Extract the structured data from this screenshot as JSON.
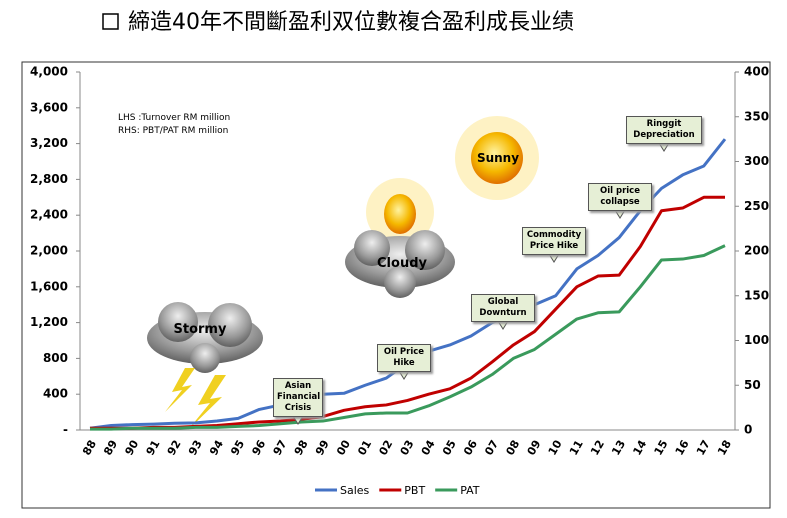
{
  "chart_data": {
    "type": "line",
    "title": "締造40年不間斷盈利双位數複合盈利成長业绩",
    "annotations": [
      "LHS :Turnover RM million",
      "RHS: PBT/PAT RM million",
      "Stormy",
      "Cloudy",
      "Sunny",
      "Asian Financial Crisis",
      "Oil Price Hike",
      "Global Downturn",
      "Commodity Price Hike",
      "Oil price collapse",
      "Ringgit Depreciation"
    ],
    "categories": [
      "88",
      "89",
      "90",
      "91",
      "92",
      "93",
      "94",
      "95",
      "96",
      "97",
      "98",
      "99",
      "00",
      "01",
      "02",
      "03",
      "04",
      "05",
      "06",
      "07",
      "08",
      "09",
      "10",
      "11",
      "12",
      "13",
      "14",
      "15",
      "16",
      "17",
      "18"
    ],
    "series": [
      {
        "name": "Sales",
        "color": "#4472c4",
        "values": [
          20,
          50,
          60,
          65,
          75,
          80,
          100,
          130,
          230,
          280,
          330,
          400,
          410,
          500,
          580,
          750,
          880,
          950,
          1050,
          1200,
          1300,
          1400,
          1500,
          1800,
          1950,
          2150,
          2450,
          2700,
          2850,
          2950,
          3250
        ]
      },
      {
        "name": "PBT",
        "color": "#c00000",
        "axis": "y2",
        "values": [
          2,
          2,
          2,
          3,
          3,
          4,
          5,
          7,
          9,
          10,
          12,
          15,
          22,
          26,
          28,
          33,
          40,
          46,
          58,
          76,
          95,
          110,
          135,
          160,
          172,
          173,
          205,
          245,
          248,
          260,
          260
        ]
      },
      {
        "name": "PAT",
        "color": "#3a9a5c",
        "axis": "y2",
        "values": [
          1,
          1,
          2,
          2,
          2,
          3,
          3,
          4,
          5,
          7,
          9,
          10,
          14,
          18,
          19,
          19,
          27,
          37,
          48,
          62,
          80,
          90,
          107,
          124,
          131,
          132,
          160,
          190,
          191,
          195,
          206
        ]
      }
    ],
    "ylim": [
      0,
      4000
    ],
    "yticks": [
      {
        "value": 0,
        "label": "-"
      },
      400,
      {
        "value": 800,
        "label": "800"
      },
      {
        "value": 1200,
        "label": "1,200"
      },
      {
        "value": 1600,
        "label": "1,600"
      },
      {
        "value": 2000,
        "label": "2,000"
      },
      {
        "value": 2400,
        "label": "2,400"
      },
      {
        "value": 2800,
        "label": "2,800"
      },
      {
        "value": 3200,
        "label": "3,200"
      },
      {
        "value": 3600,
        "label": "3,600"
      },
      {
        "value": 4000,
        "label": "4,000"
      }
    ],
    "y2lim": [
      0,
      400
    ],
    "y2ticks": [
      0,
      50,
      100,
      150,
      200,
      250,
      300,
      350,
      400
    ],
    "legend": "bottom"
  }
}
